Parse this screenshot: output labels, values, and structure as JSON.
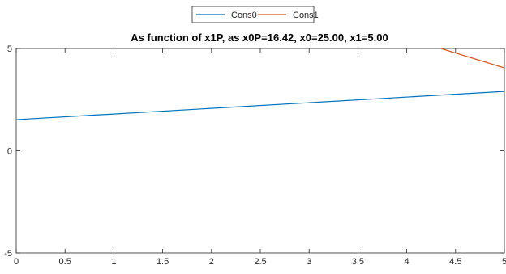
{
  "chart_data": {
    "type": "line",
    "title": "As function of x1P, as x0P=16.42, x0=25.00, x1=5.00",
    "xlabel": "",
    "ylabel": "",
    "xlim": [
      0,
      5
    ],
    "ylim": [
      -5,
      5
    ],
    "xticks": [
      0,
      0.5,
      1,
      1.5,
      2,
      2.5,
      3,
      3.5,
      4,
      4.5,
      5
    ],
    "xtick_labels": [
      "0",
      "0.5",
      "1",
      "1.5",
      "2",
      "2.5",
      "3",
      "3.5",
      "4",
      "4.5",
      "5"
    ],
    "yticks": [
      -5,
      0,
      5
    ],
    "ytick_labels": [
      "-5",
      "0",
      "5"
    ],
    "grid": false,
    "legend_position": "top-center",
    "series": [
      {
        "name": "Cons0",
        "color": "#0072BD",
        "x": [
          0,
          5
        ],
        "y": [
          1.52,
          2.9
        ]
      },
      {
        "name": "Cons1",
        "color": "#D95319",
        "x": [
          4.35,
          5
        ],
        "y": [
          5.0,
          4.05
        ]
      }
    ]
  }
}
